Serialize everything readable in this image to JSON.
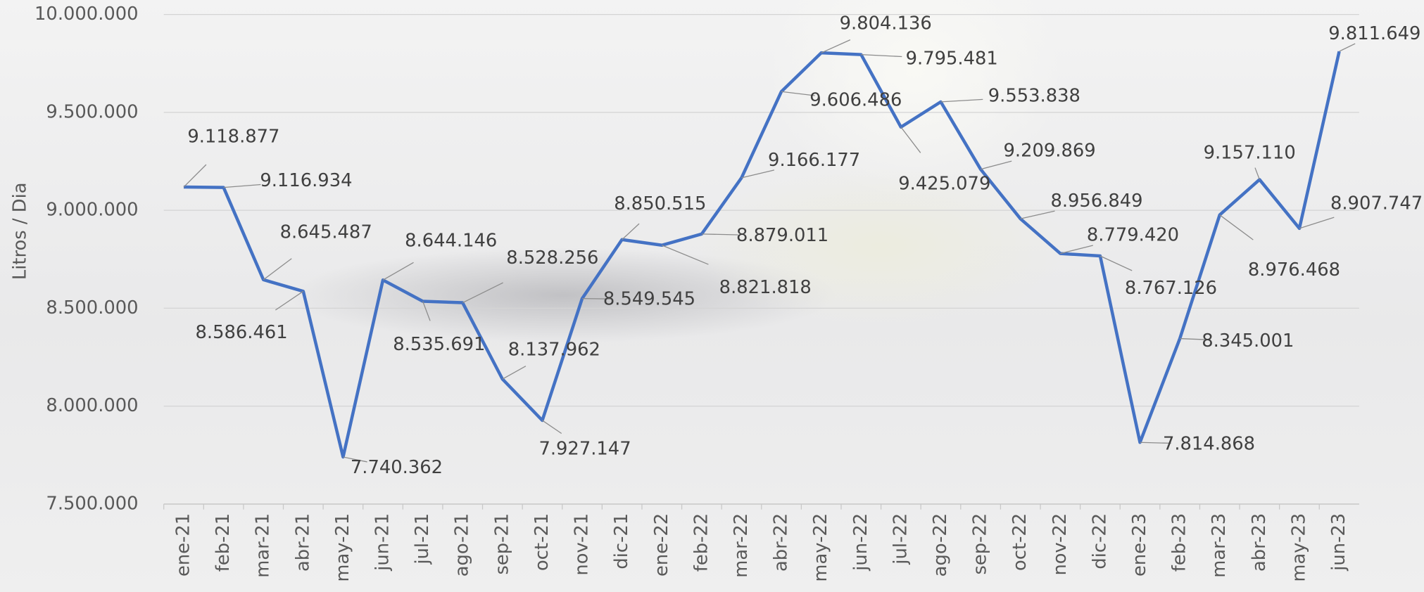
{
  "chart_data": {
    "type": "line",
    "y_label": "Litros / Dia",
    "categories": [
      "ene-21",
      "feb-21",
      "mar-21",
      "abr-21",
      "may-21",
      "jun-21",
      "jul-21",
      "ago-21",
      "sep-21",
      "oct-21",
      "nov-21",
      "dic-21",
      "ene-22",
      "feb-22",
      "mar-22",
      "abr-22",
      "may-22",
      "jun-22",
      "jul-22",
      "ago-22",
      "sep-22",
      "oct-22",
      "nov-22",
      "dic-22",
      "ene-23",
      "feb-23",
      "mar-23",
      "abr-23",
      "may-23",
      "jun-23"
    ],
    "series": [
      {
        "name": "Litros / Dia",
        "color": "#4472c4",
        "values": [
          9118877,
          9116934,
          8645487,
          8586461,
          7740362,
          8644146,
          8535691,
          8528256,
          8137962,
          7927147,
          8549545,
          8850515,
          8821818,
          8879011,
          9166177,
          9606486,
          9804136,
          9795481,
          9425079,
          9553838,
          9209869,
          8956849,
          8779420,
          8767126,
          7814868,
          8345001,
          8976468,
          9157110,
          8907747,
          9811649
        ],
        "value_labels": [
          "9.118.877",
          "9.116.934",
          "8.645.487",
          "8.586.461",
          "7.740.362",
          "8.644.146",
          "8.535.691",
          "8.528.256",
          "8.137.962",
          "7.927.147",
          "8.549.545",
          "8.850.515",
          "8.821.818",
          "8.879.011",
          "9.166.177",
          "9.606.486",
          "9.804.136",
          "9.795.481",
          "9.425.079",
          "9.553.838",
          "9.209.869",
          "8.956.849",
          "8.779.420",
          "8.767.126",
          "7.814.868",
          "8.345.001",
          "8.976.468",
          "9.157.110",
          "8.907.747",
          "9.811.649"
        ]
      }
    ],
    "ylim": [
      7500000,
      10000000
    ],
    "yticks": [
      {
        "value": 7500000,
        "label": "7.500.000"
      },
      {
        "value": 8000000,
        "label": "8.000.000"
      },
      {
        "value": 8500000,
        "label": "8.500.000"
      },
      {
        "value": 9000000,
        "label": "9.000.000"
      },
      {
        "value": 9500000,
        "label": "9.500.000"
      },
      {
        "value": 10000000,
        "label": "10.000.000"
      }
    ],
    "grid": true
  }
}
